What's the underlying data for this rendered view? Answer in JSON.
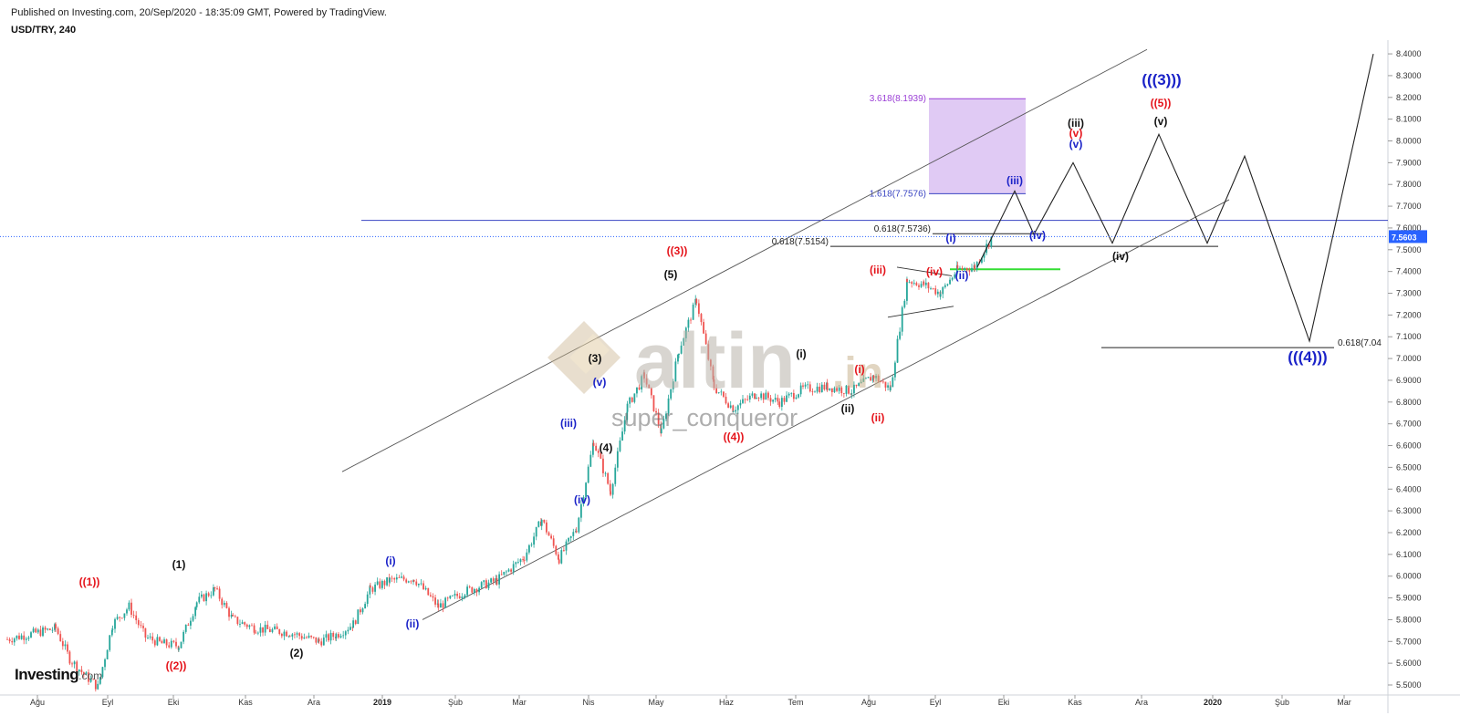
{
  "header": {
    "published": "Published on Investing.com, 20/Sep/2020 - 18:35:09 GMT, Powered by TradingView.",
    "symbol": "USD/TRY, 240"
  },
  "logo": {
    "brand": "Investing",
    "suffix": ".com"
  },
  "watermark": {
    "brand": "altin",
    "suffix": ".in",
    "author": "super_conqueror",
    "color": "#c9b48f"
  },
  "colors": {
    "candle_up": "#26a69a",
    "candle_down": "#ef5350",
    "wave_red": "#e5141b",
    "wave_blue": "#1a22c8",
    "wave_black": "#111111",
    "fib_box": "#d5b8f0",
    "fib_text": "#9b3fd6",
    "fib_blue": "#3a45c2",
    "price_tag": "#2962ff",
    "target_green": "#33dd33"
  },
  "chart_data": {
    "type": "candlestick",
    "symbol": "USD/TRY",
    "interval": "240",
    "y_axis": {
      "min": 5.45,
      "max": 8.45,
      "position": "right",
      "ticks": [
        "5.5000",
        "5.6000",
        "5.7000",
        "5.8000",
        "5.9000",
        "6.0000",
        "6.1000",
        "6.2000",
        "6.3000",
        "6.4000",
        "6.5000",
        "6.6000",
        "6.7000",
        "6.8000",
        "6.9000",
        "7.0000",
        "7.1000",
        "7.2000",
        "7.3000",
        "7.4000",
        "7.5000",
        "7.6000",
        "7.7000",
        "7.8000",
        "7.9000",
        "8.0000",
        "8.1000",
        "8.2000",
        "8.3000",
        "8.4000"
      ]
    },
    "x_axis": {
      "ticks": [
        {
          "label": "Ağu",
          "bold": false
        },
        {
          "label": "Eyl",
          "bold": false
        },
        {
          "label": "Eki",
          "bold": false
        },
        {
          "label": "Kas",
          "bold": false
        },
        {
          "label": "Ara",
          "bold": false
        },
        {
          "label": "2019",
          "bold": true
        },
        {
          "label": "Şub",
          "bold": false
        },
        {
          "label": "Mar",
          "bold": false
        },
        {
          "label": "Nis",
          "bold": false
        },
        {
          "label": "May",
          "bold": false
        },
        {
          "label": "Haz",
          "bold": false
        },
        {
          "label": "Tem",
          "bold": false
        },
        {
          "label": "Ağu",
          "bold": false
        },
        {
          "label": "Eyl",
          "bold": false
        },
        {
          "label": "Eki",
          "bold": false
        },
        {
          "label": "Kas",
          "bold": false
        },
        {
          "label": "Ara",
          "bold": false
        },
        {
          "label": "2020",
          "bold": true
        },
        {
          "label": "Şub",
          "bold": false
        },
        {
          "label": "Mar",
          "bold": false
        }
      ]
    },
    "last_price": "7.5603",
    "price_path": [
      [
        "Ağu",
        5.71
      ],
      [
        "Ağu",
        5.76
      ],
      [
        "Ağu",
        5.62
      ],
      [
        "Ağu",
        5.55
      ],
      [
        "Ağu",
        5.49
      ],
      [
        "Eyl",
        5.78
      ],
      [
        "Eyl",
        5.86
      ],
      [
        "Eyl",
        5.72
      ],
      [
        "Eyl",
        5.69
      ],
      [
        "Eki",
        5.68
      ],
      [
        "Eki",
        5.88
      ],
      [
        "Eki",
        5.94
      ],
      [
        "Eki",
        5.8
      ],
      [
        "Kas",
        5.76
      ],
      [
        "Kas",
        5.74
      ],
      [
        "Ara",
        5.7
      ],
      [
        "Ara",
        5.73
      ],
      [
        "Ara",
        5.78
      ],
      [
        "Ara",
        5.94
      ],
      [
        "2019",
        5.98
      ],
      [
        "2019",
        5.99
      ],
      [
        "2019",
        5.86
      ],
      [
        "Şub",
        5.93
      ],
      [
        "Şub",
        5.98
      ],
      [
        "Mar",
        6.09
      ],
      [
        "Mar",
        6.26
      ],
      [
        "Mar",
        6.08
      ],
      [
        "Mar",
        6.22
      ],
      [
        "Nis",
        6.62
      ],
      [
        "Nis",
        6.39
      ],
      [
        "Nis",
        6.78
      ],
      [
        "Nis",
        6.92
      ],
      [
        "May",
        6.66
      ],
      [
        "May",
        7.04
      ],
      [
        "May",
        7.27
      ],
      [
        "May",
        6.87
      ],
      [
        "Haz",
        6.77
      ],
      [
        "Haz",
        6.84
      ],
      [
        "Haz",
        6.8
      ],
      [
        "Tem",
        6.86
      ],
      [
        "Tem",
        6.87
      ],
      [
        "Tem",
        6.85
      ],
      [
        "Ağu",
        6.92
      ],
      [
        "Ağu",
        6.86
      ],
      [
        "Ağu",
        7.36
      ],
      [
        "Ağu",
        7.34
      ],
      [
        "Eyl",
        7.3
      ],
      [
        "Eyl",
        7.41
      ],
      [
        "Eyl",
        7.42
      ],
      [
        "Eyl",
        7.56
      ]
    ],
    "channel_lines": [
      {
        "name": "upper",
        "from": [
          "Ara",
          6.48
        ],
        "to": [
          "Eki",
          8.42
        ]
      },
      {
        "name": "lower",
        "from": [
          "2019",
          5.8
        ],
        "to": [
          "Kas",
          7.73
        ]
      }
    ],
    "projection_path": [
      [
        "Eyl",
        7.42
      ],
      [
        "Eki",
        7.77
      ],
      [
        "Eki",
        7.57
      ],
      [
        "Kas",
        7.9
      ],
      [
        "Kas",
        7.53
      ],
      [
        "Ara",
        8.03
      ],
      [
        "Ara",
        7.53
      ],
      [
        "2020",
        7.93
      ],
      [
        "2020",
        7.08
      ],
      [
        "Mar",
        8.4
      ]
    ],
    "horizontal_lines": [
      {
        "label": "0.618(7.5154)",
        "value": 7.5154,
        "range": [
          "Tem",
          "2020"
        ]
      },
      {
        "label": "0.618(7.5736)",
        "value": 7.5736,
        "range": [
          "Eyl",
          "Eki"
        ]
      },
      {
        "label": "0.618(7.04",
        "value": 7.05,
        "range": [
          "Ara",
          "Mar"
        ]
      },
      {
        "label": "",
        "value": 7.635,
        "range": [
          "Ara",
          "Mar"
        ],
        "color": "#3a45c2"
      },
      {
        "label": "",
        "value": 7.41,
        "range": [
          "Eyl",
          "Eki"
        ],
        "color": "#33dd33"
      }
    ],
    "fib_levels": [
      {
        "label": "3.618(8.1939)",
        "value": 8.1939
      },
      {
        "label": "1.618(7.7576)",
        "value": 7.7576
      }
    ],
    "triangle_lines": [
      {
        "from": [
          "Ağu",
          7.42
        ],
        "to": [
          "Eyl",
          7.38
        ]
      },
      {
        "from": [
          "Ağu",
          7.19
        ],
        "to": [
          "Eyl",
          7.24
        ]
      }
    ],
    "wave_labels": [
      {
        "text": "((1))",
        "color": "red",
        "at": [
          "Eyl",
          5.9
        ]
      },
      {
        "text": "((2))",
        "color": "red",
        "at": [
          "Eki",
          5.58
        ]
      },
      {
        "text": "(1)",
        "color": "black",
        "at": [
          "Eki",
          5.97
        ]
      },
      {
        "text": "(2)",
        "color": "black",
        "at": [
          "Kas",
          5.63
        ]
      },
      {
        "text": "(i)",
        "color": "blue",
        "at": [
          "Ara",
          6.01
        ]
      },
      {
        "text": "(ii)",
        "color": "blue",
        "at": [
          "2019",
          5.76
        ]
      },
      {
        "text": "(iii)",
        "color": "blue",
        "at": [
          "Mar",
          6.68
        ]
      },
      {
        "text": "(iv)",
        "color": "blue",
        "at": [
          "Mar",
          6.32
        ]
      },
      {
        "text": "(v)",
        "color": "blue",
        "at": [
          "Nis",
          6.86
        ]
      },
      {
        "text": "(3)",
        "color": "black",
        "at": [
          "Nis",
          6.97
        ]
      },
      {
        "text": "(4)",
        "color": "black",
        "at": [
          "Nis",
          6.58
        ]
      },
      {
        "text": "(5)",
        "color": "black",
        "at": [
          "May",
          7.34
        ]
      },
      {
        "text": "((3))",
        "color": "red",
        "at": [
          "May",
          7.45
        ]
      },
      {
        "text": "((4))",
        "color": "red",
        "at": [
          "Haz",
          6.6
        ]
      },
      {
        "text": "(i)",
        "color": "black",
        "at": [
          "Tem",
          6.99
        ]
      },
      {
        "text": "(ii)",
        "color": "black",
        "at": [
          "Tem",
          6.73
        ]
      },
      {
        "text": "(i)",
        "color": "red",
        "at": [
          "Ağu",
          7.03
        ]
      },
      {
        "text": "(ii)",
        "color": "red",
        "at": [
          "Ağu",
          6.78
        ]
      },
      {
        "text": "(iii)",
        "color": "red",
        "at": [
          "Ağu",
          7.37
        ]
      },
      {
        "text": "(iv)",
        "color": "red",
        "at": [
          "Eyl",
          7.25
        ]
      },
      {
        "text": "(i)",
        "color": "blue",
        "at": [
          "Eyl",
          7.54
        ]
      },
      {
        "text": "(ii)",
        "color": "blue",
        "at": [
          "Eyl",
          7.36
        ]
      },
      {
        "text": "(iii)",
        "color": "blue",
        "at": [
          "Eki",
          7.78
        ]
      },
      {
        "text": "(iv)",
        "color": "blue",
        "at": [
          "Eki",
          7.54
        ]
      },
      {
        "text": "(v)",
        "color": "red",
        "at": [
          "Kas",
          7.99
        ]
      },
      {
        "text": "(v)",
        "color": "blue",
        "at": [
          "Kas",
          7.93
        ]
      },
      {
        "text": "(iii)",
        "color": "black",
        "at": [
          "Kas",
          8.05
        ]
      },
      {
        "text": "(iv)",
        "color": "black",
        "at": [
          "Kas",
          7.44
        ]
      },
      {
        "text": "(v)",
        "color": "black",
        "at": [
          "Ara",
          8.06
        ]
      },
      {
        "text": "((5))",
        "color": "red",
        "at": [
          "Ara",
          8.14
        ]
      },
      {
        "text": "(((3)))",
        "color": "blue",
        "at": [
          "Ara",
          8.24
        ]
      },
      {
        "text": "(((4)))",
        "color": "blue",
        "at": [
          "2020",
          6.99
        ]
      }
    ]
  }
}
